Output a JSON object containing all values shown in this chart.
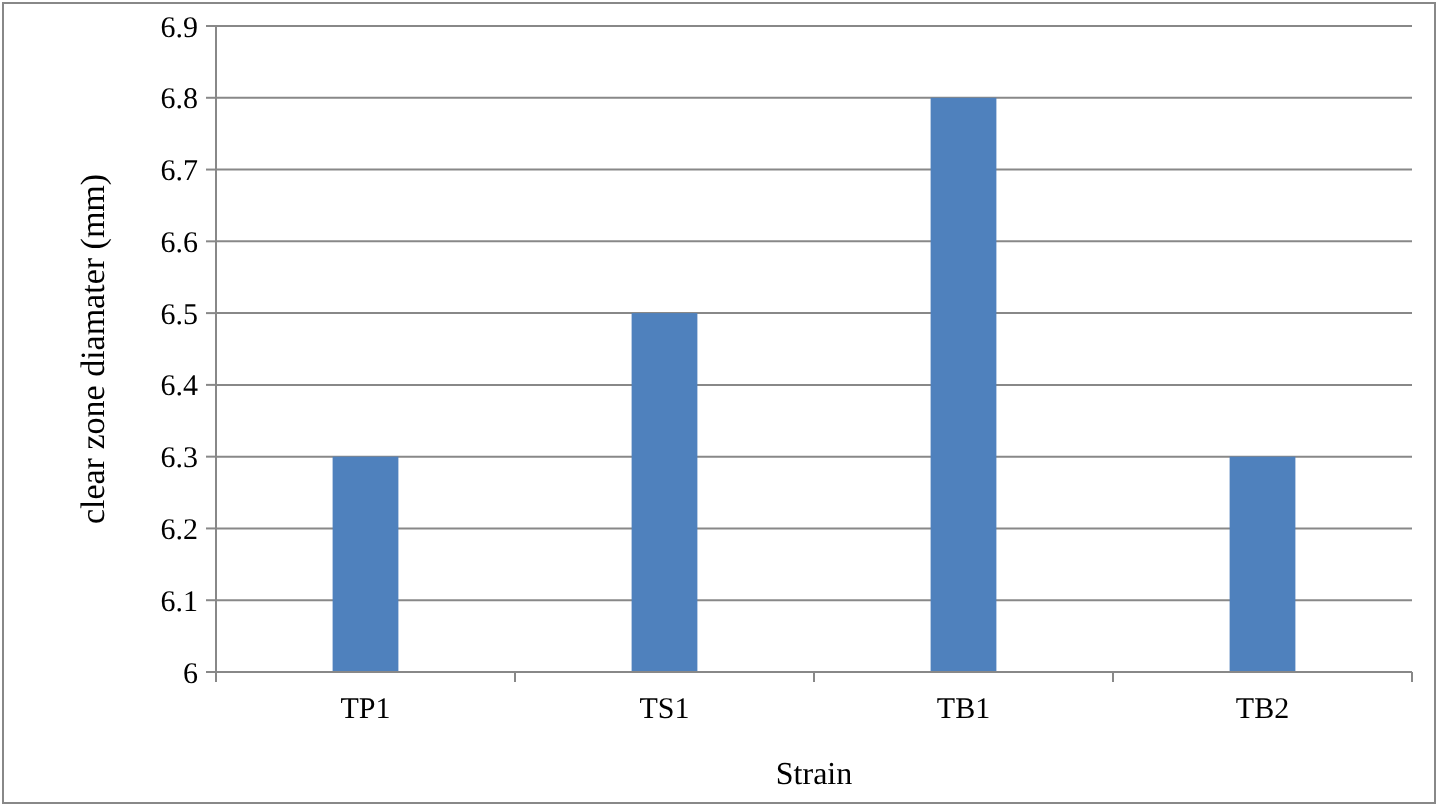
{
  "chart_data": {
    "type": "bar",
    "xlabel": "Strain",
    "ylabel": "clear zone diamater (mm)",
    "categories": [
      "TP1",
      "TS1",
      "TB1",
      "TB2"
    ],
    "values": [
      6.3,
      6.5,
      6.8,
      6.3
    ],
    "color": "#4f81bd",
    "ylim": [
      6,
      6.9
    ],
    "yticks": [
      6,
      6.1,
      6.2,
      6.3,
      6.4,
      6.5,
      6.6,
      6.7,
      6.8,
      6.9
    ],
    "grid": true
  }
}
